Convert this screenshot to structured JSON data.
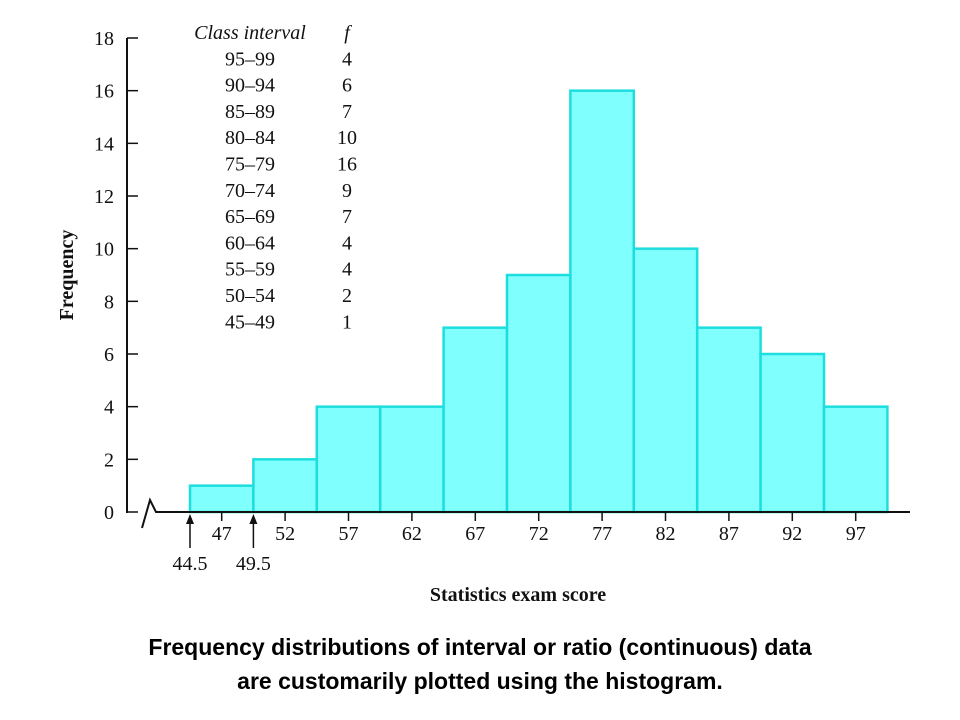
{
  "chart_data": {
    "type": "bar",
    "histogram": true,
    "xlabel": "Statistics exam score",
    "ylabel": "Frequency",
    "ylim": [
      0,
      18
    ],
    "yticks": [
      0,
      2,
      4,
      6,
      8,
      10,
      12,
      14,
      16,
      18
    ],
    "categories": [
      "47",
      "52",
      "57",
      "62",
      "67",
      "72",
      "77",
      "82",
      "87",
      "92",
      "97"
    ],
    "values": [
      1,
      2,
      4,
      4,
      7,
      9,
      16,
      10,
      7,
      6,
      4
    ],
    "boundary_annotations": [
      "44.5",
      "49.5"
    ],
    "bar_color": "#80ffff",
    "bar_edge_color": "#1ddede",
    "axis_break": true,
    "table": {
      "headers": [
        "Class interval",
        "f"
      ],
      "rows": [
        [
          "95–99",
          "4"
        ],
        [
          "90–94",
          "6"
        ],
        [
          "85–89",
          "7"
        ],
        [
          "80–84",
          "10"
        ],
        [
          "75–79",
          "16"
        ],
        [
          "70–74",
          "9"
        ],
        [
          "65–69",
          "7"
        ],
        [
          "60–64",
          "4"
        ],
        [
          "55–59",
          "4"
        ],
        [
          "50–54",
          "2"
        ],
        [
          "45–49",
          "1"
        ]
      ]
    }
  },
  "caption": {
    "line1": "Frequency distributions of interval or ratio (continuous) data",
    "line2": "are customarily plotted using the histogram."
  }
}
